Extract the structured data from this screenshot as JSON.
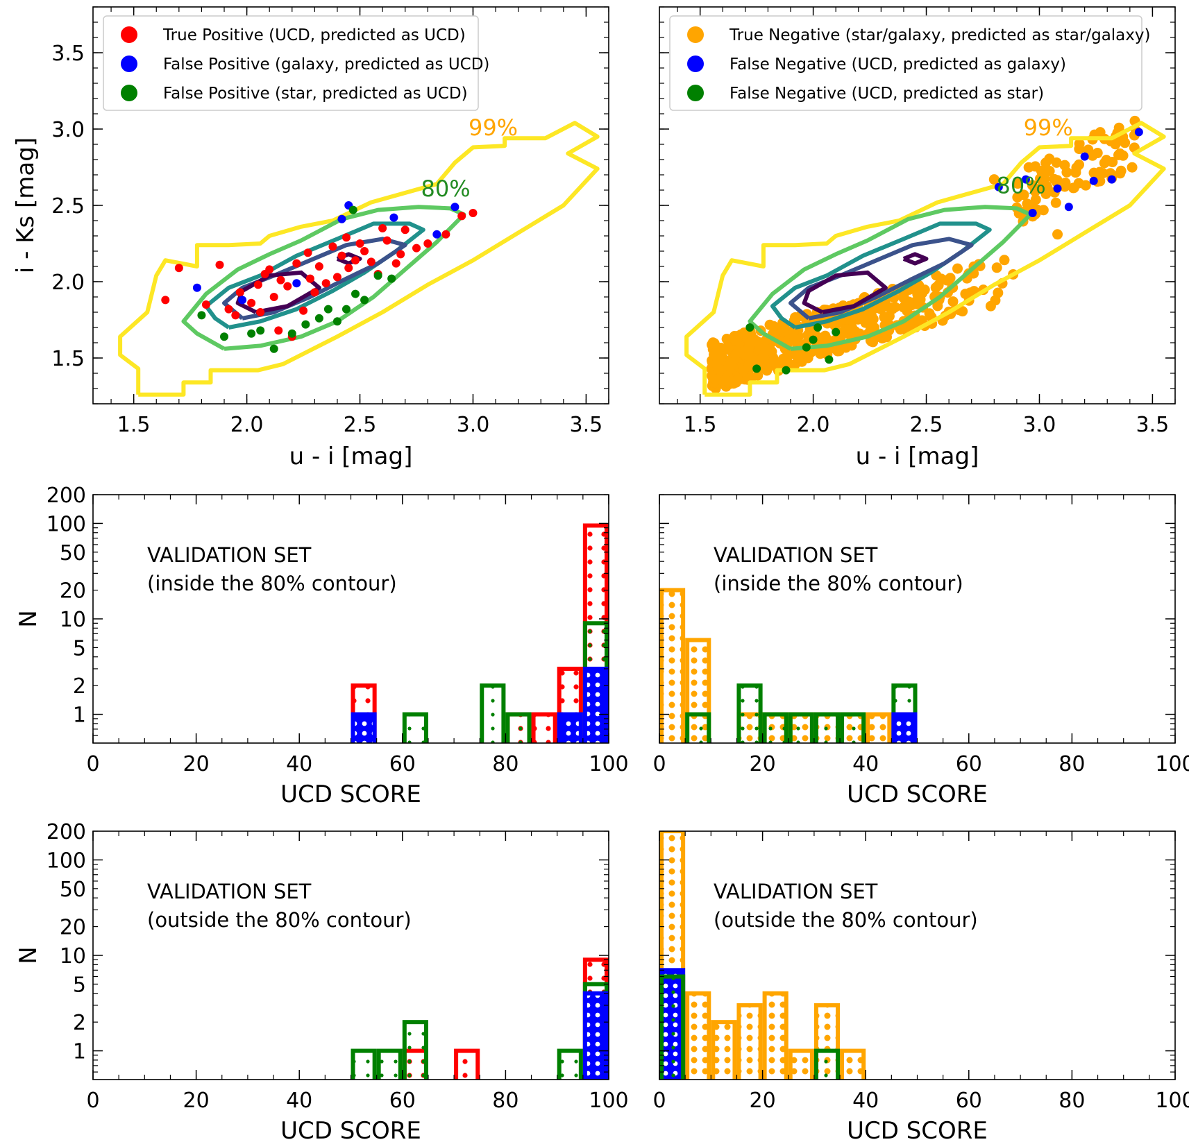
{
  "chart_data": [
    {
      "id": "scatter_left",
      "type": "scatter",
      "xlabel": "u - i [mag]",
      "ylabel": "i - Ks [mag]",
      "xlim": [
        1.32,
        3.6
      ],
      "ylim": [
        1.2,
        3.8
      ],
      "xticks": [
        "1.5",
        "2.0",
        "2.5",
        "3.0",
        "3.5"
      ],
      "yticks": [
        "1.5",
        "2.0",
        "2.5",
        "3.0",
        "3.5"
      ],
      "legend": [
        {
          "label": "True Positive (UCD, predicted as UCD)",
          "color": "#ff0000"
        },
        {
          "label": "False Positive (galaxy, predicted as UCD)",
          "color": "#0000ff"
        },
        {
          "label": "False Positive (star, predicted as UCD)",
          "color": "#008000"
        }
      ],
      "contour_labels": [
        {
          "text": "99%",
          "color": "#ffa500"
        },
        {
          "text": "80%",
          "color": "#228b22"
        }
      ],
      "series": [
        {
          "name": "True Positive",
          "color": "#ff0000",
          "points": [
            [
              1.64,
              1.88
            ],
            [
              1.7,
              2.09
            ],
            [
              1.82,
              1.85
            ],
            [
              1.88,
              2.11
            ],
            [
              1.92,
              1.82
            ],
            [
              1.97,
              1.93
            ],
            [
              2.02,
              1.86
            ],
            [
              2.05,
              1.98
            ],
            [
              2.08,
              2.05
            ],
            [
              2.12,
              1.9
            ],
            [
              2.15,
              2.01
            ],
            [
              2.18,
              1.97
            ],
            [
              2.22,
              2.12
            ],
            [
              2.25,
              1.81
            ],
            [
              2.28,
              2.02
            ],
            [
              2.32,
              2.1
            ],
            [
              2.35,
              1.99
            ],
            [
              2.38,
              2.23
            ],
            [
              2.42,
              2.17
            ],
            [
              2.45,
              2.09
            ],
            [
              2.48,
              2.14
            ],
            [
              2.52,
              2.2
            ],
            [
              2.55,
              2.13
            ],
            [
              2.58,
              2.05
            ],
            [
              2.62,
              2.27
            ],
            [
              2.66,
              2.12
            ],
            [
              2.7,
              2.34
            ],
            [
              2.75,
              2.22
            ],
            [
              2.8,
              2.25
            ],
            [
              2.88,
              2.31
            ],
            [
              2.95,
              2.43
            ],
            [
              3.0,
              2.45
            ],
            [
              2.14,
              1.68
            ],
            [
              2.2,
              1.64
            ],
            [
              1.95,
              1.78
            ],
            [
              2.1,
              2.08
            ],
            [
              2.3,
              1.93
            ],
            [
              2.4,
              2.03
            ],
            [
              2.5,
              2.25
            ],
            [
              2.6,
              2.35
            ],
            [
              2.06,
              1.8
            ],
            [
              2.27,
              2.19
            ],
            [
              2.44,
              2.29
            ],
            [
              2.68,
              2.18
            ]
          ]
        },
        {
          "name": "False Positive (galaxy)",
          "color": "#0000ff",
          "points": [
            [
              1.78,
              1.96
            ],
            [
              1.98,
              1.88
            ],
            [
              2.22,
              1.99
            ],
            [
              2.42,
              2.41
            ],
            [
              2.45,
              2.5
            ],
            [
              2.65,
              2.42
            ],
            [
              2.84,
              2.31
            ],
            [
              2.92,
              2.49
            ]
          ]
        },
        {
          "name": "False Positive (star)",
          "color": "#008000",
          "points": [
            [
              1.8,
              1.78
            ],
            [
              1.9,
              1.64
            ],
            [
              2.02,
              1.66
            ],
            [
              2.06,
              1.68
            ],
            [
              2.12,
              1.56
            ],
            [
              2.2,
              1.66
            ],
            [
              2.26,
              1.72
            ],
            [
              2.32,
              1.76
            ],
            [
              2.36,
              1.82
            ],
            [
              2.4,
              1.74
            ],
            [
              2.44,
              1.82
            ],
            [
              2.48,
              1.92
            ],
            [
              2.52,
              1.88
            ],
            [
              2.58,
              2.04
            ],
            [
              2.64,
              2.02
            ],
            [
              2.47,
              2.47
            ]
          ]
        }
      ]
    },
    {
      "id": "scatter_right",
      "type": "scatter",
      "xlabel": "u - i [mag]",
      "ylabel": "",
      "xlim": [
        1.32,
        3.6
      ],
      "ylim": [
        1.2,
        3.8
      ],
      "xticks": [
        "1.5",
        "2.0",
        "2.5",
        "3.0",
        "3.5"
      ],
      "yticks": [],
      "legend": [
        {
          "label": "True Negative (star/galaxy, predicted as star/galaxy)",
          "color": "#ffa500"
        },
        {
          "label": "False Negative (UCD, predicted as galaxy)",
          "color": "#0000ff"
        },
        {
          "label": "False Negative (UCD, predicted as star)",
          "color": "#008000"
        }
      ],
      "contour_labels": [
        {
          "text": "99%",
          "color": "#ffa500"
        },
        {
          "text": "80%",
          "color": "#228b22"
        }
      ],
      "series": [
        {
          "name": "True Negative",
          "color": "#ffa500",
          "points": []
        },
        {
          "name": "False Negative (galaxy)",
          "color": "#0000ff",
          "points": [
            [
              2.82,
              2.62
            ],
            [
              2.94,
              2.67
            ],
            [
              3.08,
              2.61
            ],
            [
              3.13,
              2.49
            ],
            [
              3.2,
              2.82
            ],
            [
              3.24,
              2.66
            ],
            [
              3.32,
              2.67
            ],
            [
              3.44,
              2.98
            ],
            [
              2.97,
              2.45
            ]
          ]
        },
        {
          "name": "False Negative (star)",
          "color": "#008000",
          "points": [
            [
              1.72,
              1.7
            ],
            [
              1.75,
              1.43
            ],
            [
              1.88,
              1.42
            ],
            [
              1.97,
              1.57
            ],
            [
              2.0,
              1.62
            ],
            [
              2.07,
              1.49
            ],
            [
              2.1,
              1.67
            ],
            [
              2.02,
              1.7
            ]
          ]
        }
      ]
    },
    {
      "id": "hist_left_inside",
      "type": "bar",
      "xlabel": "UCD SCORE",
      "ylabel": "N",
      "yscale": "log",
      "xlim": [
        0,
        100
      ],
      "ylim": [
        0.5,
        200
      ],
      "xticks": [
        "0",
        "20",
        "40",
        "60",
        "80",
        "100"
      ],
      "yticks": [
        "1",
        "2",
        "5",
        "10",
        "20",
        "50",
        "100",
        "200"
      ],
      "bin_width": 5,
      "annotation": [
        "VALIDATION SET",
        "(inside the 80% contour)"
      ],
      "series": [
        {
          "name": "True Positive",
          "color": "#ff0000",
          "bins": [
            50,
            80,
            85,
            90,
            95
          ],
          "values": [
            2,
            1,
            1,
            3,
            95
          ]
        },
        {
          "name": "False Positive (star)",
          "color": "#008000",
          "bins": [
            60,
            75,
            80,
            95
          ],
          "values": [
            1,
            2,
            1,
            9
          ]
        },
        {
          "name": "False Positive (galaxy)",
          "color": "#0000ff",
          "bins": [
            50,
            90,
            95
          ],
          "values": [
            1,
            1,
            3
          ]
        }
      ]
    },
    {
      "id": "hist_right_inside",
      "type": "bar",
      "xlabel": "UCD SCORE",
      "ylabel": "",
      "yscale": "log",
      "xlim": [
        0,
        100
      ],
      "ylim": [
        0.5,
        200
      ],
      "xticks": [
        "0",
        "20",
        "40",
        "60",
        "80",
        "100"
      ],
      "yticks": [],
      "bin_width": 5,
      "annotation": [
        "VALIDATION SET",
        "(inside the 80% contour)"
      ],
      "series": [
        {
          "name": "True Negative",
          "color": "#ffa500",
          "bins": [
            0,
            5,
            15,
            20,
            25,
            30,
            35,
            40,
            45
          ],
          "values": [
            20,
            6,
            1,
            1,
            1,
            1,
            1,
            1,
            1
          ]
        },
        {
          "name": "False Negative (star)",
          "color": "#008000",
          "bins": [
            5,
            15,
            20,
            25,
            30,
            35,
            45
          ],
          "values": [
            1,
            2,
            1,
            1,
            1,
            1,
            2
          ]
        },
        {
          "name": "False Negative (galaxy)",
          "color": "#0000ff",
          "bins": [
            45
          ],
          "values": [
            1
          ]
        }
      ]
    },
    {
      "id": "hist_left_outside",
      "type": "bar",
      "xlabel": "UCD SCORE",
      "ylabel": "N",
      "yscale": "log",
      "xlim": [
        0,
        100
      ],
      "ylim": [
        0.5,
        200
      ],
      "xticks": [
        "0",
        "20",
        "40",
        "60",
        "80",
        "100"
      ],
      "yticks": [
        "1",
        "2",
        "5",
        "10",
        "20",
        "50",
        "100",
        "200"
      ],
      "bin_width": 5,
      "annotation": [
        "VALIDATION SET",
        "(outside the 80% contour)"
      ],
      "series": [
        {
          "name": "True Positive",
          "color": "#ff0000",
          "bins": [
            60,
            70,
            95
          ],
          "values": [
            1,
            1,
            9
          ]
        },
        {
          "name": "False Positive (star)",
          "color": "#008000",
          "bins": [
            50,
            55,
            60,
            90,
            95
          ],
          "values": [
            1,
            1,
            2,
            1,
            5
          ]
        },
        {
          "name": "False Positive (galaxy)",
          "color": "#0000ff",
          "bins": [
            95
          ],
          "values": [
            4
          ]
        }
      ]
    },
    {
      "id": "hist_right_outside",
      "type": "bar",
      "xlabel": "UCD SCORE",
      "ylabel": "",
      "yscale": "log",
      "xlim": [
        0,
        100
      ],
      "ylim": [
        0.5,
        200
      ],
      "xticks": [
        "0",
        "20",
        "40",
        "60",
        "80",
        "100"
      ],
      "yticks": [],
      "bin_width": 5,
      "annotation": [
        "VALIDATION SET",
        "(outside the 80% contour)"
      ],
      "series": [
        {
          "name": "True Negative",
          "color": "#ffa500",
          "bins": [
            0,
            5,
            10,
            15,
            20,
            25,
            30,
            35
          ],
          "values": [
            200,
            4,
            2,
            3,
            4,
            1,
            3,
            1
          ]
        },
        {
          "name": "False Negative (galaxy)",
          "color": "#0000ff",
          "bins": [
            0
          ],
          "values": [
            7
          ]
        },
        {
          "name": "False Negative (star)",
          "color": "#008000",
          "bins": [
            0,
            30
          ],
          "values": [
            6,
            1
          ]
        }
      ]
    }
  ]
}
